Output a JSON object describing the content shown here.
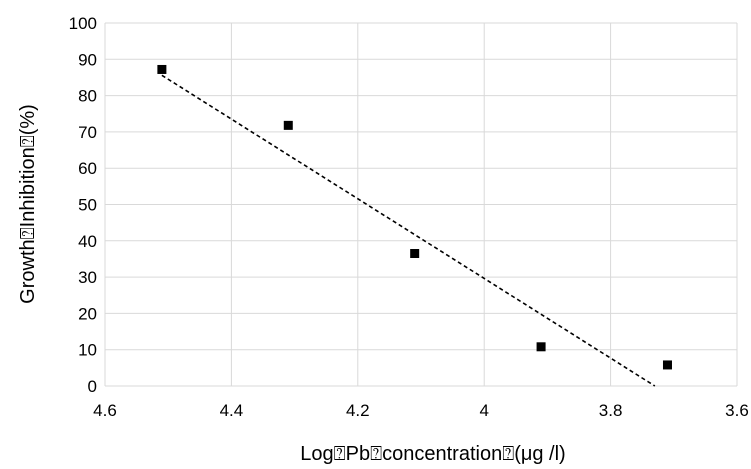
{
  "chart_data": {
    "type": "scatter",
    "xlabel": "Log⍰Pb⍰concentration⍰(μg /l)",
    "ylabel": "Growth⍰Inhibition⍰(%)",
    "xlim": [
      4.6,
      3.6
    ],
    "ylim": [
      0,
      100
    ],
    "x_reversed": true,
    "x_ticks": [
      4.6,
      4.4,
      4.2,
      4,
      3.8,
      3.6
    ],
    "x_tick_labels": [
      "4.6",
      "4.4",
      "4.2",
      "4",
      "3.8",
      "3.6"
    ],
    "y_ticks": [
      0,
      10,
      20,
      30,
      40,
      50,
      60,
      70,
      80,
      90,
      100
    ],
    "y_tick_labels": [
      "0",
      "10",
      "20",
      "30",
      "40",
      "50",
      "60",
      "70",
      "80",
      "90",
      "100"
    ],
    "grid": true,
    "points": [
      {
        "x": 4.51,
        "y": 87.2
      },
      {
        "x": 4.31,
        "y": 71.8
      },
      {
        "x": 4.11,
        "y": 36.5
      },
      {
        "x": 3.91,
        "y": 10.8
      },
      {
        "x": 3.71,
        "y": 5.8
      }
    ],
    "trendline": {
      "style": "dashed",
      "x_start": 4.51,
      "y_start": 85.6,
      "x_end": 3.73,
      "y_end": 0
    },
    "marker": "square",
    "marker_color": "#000000",
    "grid_color": "#d9d9d9",
    "trendline_color": "#000000"
  }
}
